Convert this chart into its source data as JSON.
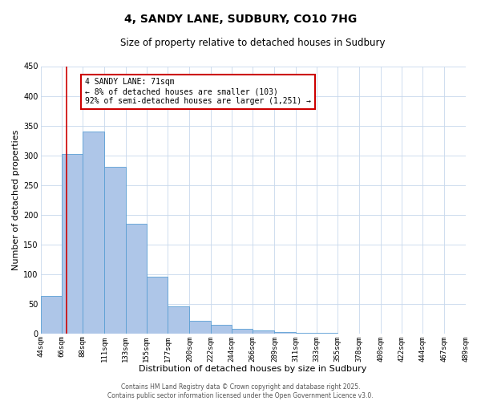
{
  "title": "4, SANDY LANE, SUDBURY, CO10 7HG",
  "subtitle": "Size of property relative to detached houses in Sudbury",
  "xlabel": "Distribution of detached houses by size in Sudbury",
  "ylabel": "Number of detached properties",
  "bar_edges": [
    44,
    66,
    88,
    111,
    133,
    155,
    177,
    200,
    222,
    244,
    266,
    289,
    311,
    333,
    355,
    378,
    400,
    422,
    444,
    467,
    489
  ],
  "bar_heights": [
    63,
    302,
    340,
    280,
    185,
    95,
    46,
    22,
    15,
    8,
    5,
    2,
    1,
    1,
    0,
    0,
    0,
    0,
    0,
    0
  ],
  "bar_color": "#aec6e8",
  "bar_edge_color": "#5a9fd4",
  "property_line_x": 71,
  "property_line_color": "#cc0000",
  "annotation_text_line1": "4 SANDY LANE: 71sqm",
  "annotation_text_line2": "← 8% of detached houses are smaller (103)",
  "annotation_text_line3": "92% of semi-detached houses are larger (1,251) →",
  "annotation_box_color": "#cc0000",
  "ylim": [
    0,
    450
  ],
  "xlim": [
    44,
    489
  ],
  "tick_labels": [
    "44sqm",
    "66sqm",
    "88sqm",
    "111sqm",
    "133sqm",
    "155sqm",
    "177sqm",
    "200sqm",
    "222sqm",
    "244sqm",
    "266sqm",
    "289sqm",
    "311sqm",
    "333sqm",
    "355sqm",
    "378sqm",
    "400sqm",
    "422sqm",
    "444sqm",
    "467sqm",
    "489sqm"
  ],
  "footer_line1": "Contains HM Land Registry data © Crown copyright and database right 2025.",
  "footer_line2": "Contains public sector information licensed under the Open Government Licence v3.0.",
  "background_color": "#ffffff",
  "grid_color": "#c8d8ec",
  "title_fontsize": 10,
  "subtitle_fontsize": 8.5,
  "axis_label_fontsize": 8,
  "tick_fontsize": 6.5,
  "annotation_fontsize": 7,
  "footer_fontsize": 5.5
}
